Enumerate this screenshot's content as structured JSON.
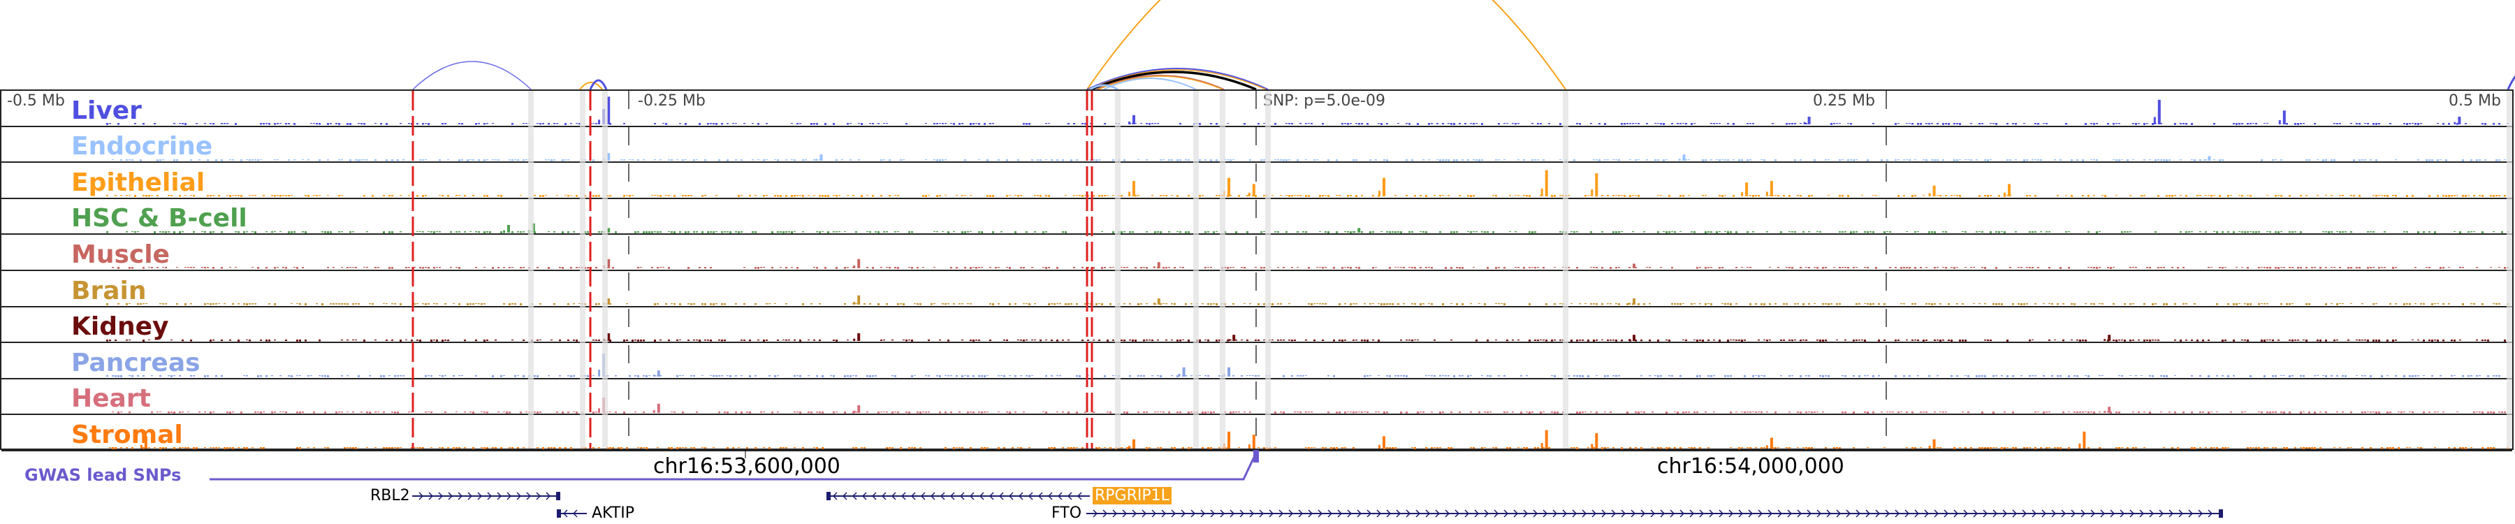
{
  "axis": {
    "labels": [
      {
        "text": "-0.5 Mb",
        "kb": -500
      },
      {
        "text": "-0.25 Mb",
        "kb": -250
      },
      {
        "text": "SNP: p=5.0e-09",
        "kb": 0
      },
      {
        "text": "0.25 Mb",
        "kb": 250
      },
      {
        "text": "0.5 Mb",
        "kb": 500
      }
    ]
  },
  "tracks": [
    {
      "name": "Liver",
      "color": "#4f4fe0",
      "peaks": [
        [
          -260,
          0.9
        ],
        [
          -262,
          0.5
        ],
        [
          -50,
          0.3
        ],
        [
          360,
          0.8
        ],
        [
          410,
          0.45
        ],
        [
          220,
          0.25
        ],
        [
          480,
          0.25
        ]
      ]
    },
    {
      "name": "Endocrine",
      "color": "#99c2ff",
      "peaks": [
        [
          -260,
          0.25
        ],
        [
          -175,
          0.2
        ],
        [
          170,
          0.2
        ],
        [
          380,
          0.15
        ]
      ]
    },
    {
      "name": "Epithelial",
      "color": "#ff9d1a",
      "peaks": [
        [
          -50,
          0.5
        ],
        [
          50,
          0.6
        ],
        [
          115,
          0.85
        ],
        [
          135,
          0.75
        ],
        [
          -12,
          0.6
        ],
        [
          -2,
          0.4
        ],
        [
          270,
          0.35
        ],
        [
          195,
          0.45
        ],
        [
          205,
          0.5
        ],
        [
          300,
          0.4
        ]
      ]
    },
    {
      "name": "HSC & B-cell",
      "color": "#4fa04f",
      "peaks": [
        [
          -300,
          0.25
        ],
        [
          -290,
          0.3
        ],
        [
          -260,
          0.15
        ],
        [
          40,
          0.15
        ]
      ]
    },
    {
      "name": "Muscle",
      "color": "#c76660",
      "peaks": [
        [
          -260,
          0.3
        ],
        [
          -160,
          0.3
        ],
        [
          -40,
          0.2
        ],
        [
          150,
          0.15
        ]
      ]
    },
    {
      "name": "Brain",
      "color": "#c69432",
      "peaks": [
        [
          -260,
          0.2
        ],
        [
          -160,
          0.3
        ],
        [
          -40,
          0.2
        ],
        [
          150,
          0.2
        ]
      ]
    },
    {
      "name": "Kidney",
      "color": "#6b0d0d",
      "peaks": [
        [
          -260,
          0.25
        ],
        [
          -160,
          0.25
        ],
        [
          -10,
          0.2
        ],
        [
          150,
          0.2
        ],
        [
          340,
          0.2
        ]
      ]
    },
    {
      "name": "Pancreas",
      "color": "#8aa4e6",
      "peaks": [
        [
          -262,
          0.75
        ],
        [
          -240,
          0.2
        ],
        [
          -12,
          0.3
        ],
        [
          -30,
          0.3
        ]
      ]
    },
    {
      "name": "Heart",
      "color": "#d66f7c",
      "peaks": [
        [
          -262,
          0.5
        ],
        [
          -240,
          0.3
        ],
        [
          -160,
          0.25
        ],
        [
          340,
          0.2
        ]
      ]
    },
    {
      "name": "Stromal",
      "color": "#ff7a0f",
      "peaks": [
        [
          -445,
          0.4
        ],
        [
          -50,
          0.3
        ],
        [
          50,
          0.4
        ],
        [
          115,
          0.6
        ],
        [
          135,
          0.5
        ],
        [
          -12,
          0.55
        ],
        [
          -2,
          0.45
        ],
        [
          270,
          0.3
        ],
        [
          330,
          0.55
        ],
        [
          205,
          0.35
        ]
      ]
    }
  ],
  "coords": [
    "chr16:53,600,000",
    "chr16:54,000,000"
  ],
  "gwas_label": "GWAS lead SNPs",
  "genes": [
    {
      "name": "RBL2",
      "strand": "+"
    },
    {
      "name": "AKTIP",
      "strand": "-"
    },
    {
      "name": "RPGRIP1L",
      "strand": "-",
      "highlight": "#f7a21b"
    },
    {
      "name": "FTO",
      "strand": "+"
    }
  ],
  "colors": {
    "snp_line": "#e02020",
    "highlight": "#e0e0e0",
    "gene": "#1c1c6e",
    "gwas": "#6a5acd"
  }
}
